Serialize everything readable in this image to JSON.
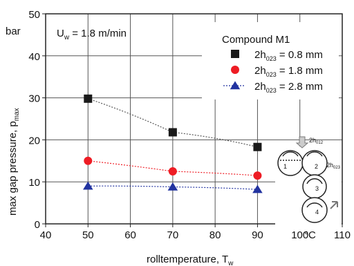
{
  "chart_data": {
    "type": "scatter",
    "xlabel": "rolltemperature, T",
    "xlabel_sub": "w",
    "ylabel": "max gap pressure, p",
    "ylabel_sub": "max",
    "y_unit": "bar",
    "x_unit": "°C",
    "xlim": [
      40,
      110
    ],
    "ylim": [
      0,
      50
    ],
    "x_ticks": [
      "40",
      "50",
      "60",
      "70",
      "80",
      "90",
      "100",
      "110"
    ],
    "y_ticks": [
      "0",
      "10",
      "20",
      "30",
      "40",
      "50"
    ],
    "annotation": {
      "main": "U",
      "sub": "w",
      "rest": " = 1.8 m/min"
    },
    "legend_title": "Compound M1",
    "legend_position": "top-right",
    "grid": true,
    "series": [
      {
        "name_main": "2h",
        "name_sub": "023",
        "name_rest": " = 0.8 mm",
        "marker": "square",
        "color": "#1a1a1a",
        "line_color": "#555555",
        "x": [
          50,
          70,
          90
        ],
        "y": [
          29.8,
          21.8,
          18.3
        ]
      },
      {
        "name_main": "2h",
        "name_sub": "023",
        "name_rest": " = 1.8 mm",
        "marker": "circle",
        "color": "#ee1c24",
        "line_color": "#ee1c24",
        "x": [
          50,
          70,
          90
        ],
        "y": [
          15.0,
          12.5,
          11.5
        ]
      },
      {
        "name_main": "2h",
        "name_sub": "023",
        "name_rest": " = 2.8 mm",
        "marker": "triangle",
        "color": "#2233a0",
        "line_color": "#2233a0",
        "x": [
          50,
          70,
          90
        ],
        "y": [
          9.0,
          8.8,
          8.2
        ]
      }
    ]
  },
  "diagram": {
    "roll_labels": [
      "1",
      "2",
      "3",
      "4"
    ],
    "gap_label_1": "2h",
    "gap_label_1_sub": "012",
    "gap_label_2": "2h",
    "gap_label_2_sub": "023"
  }
}
